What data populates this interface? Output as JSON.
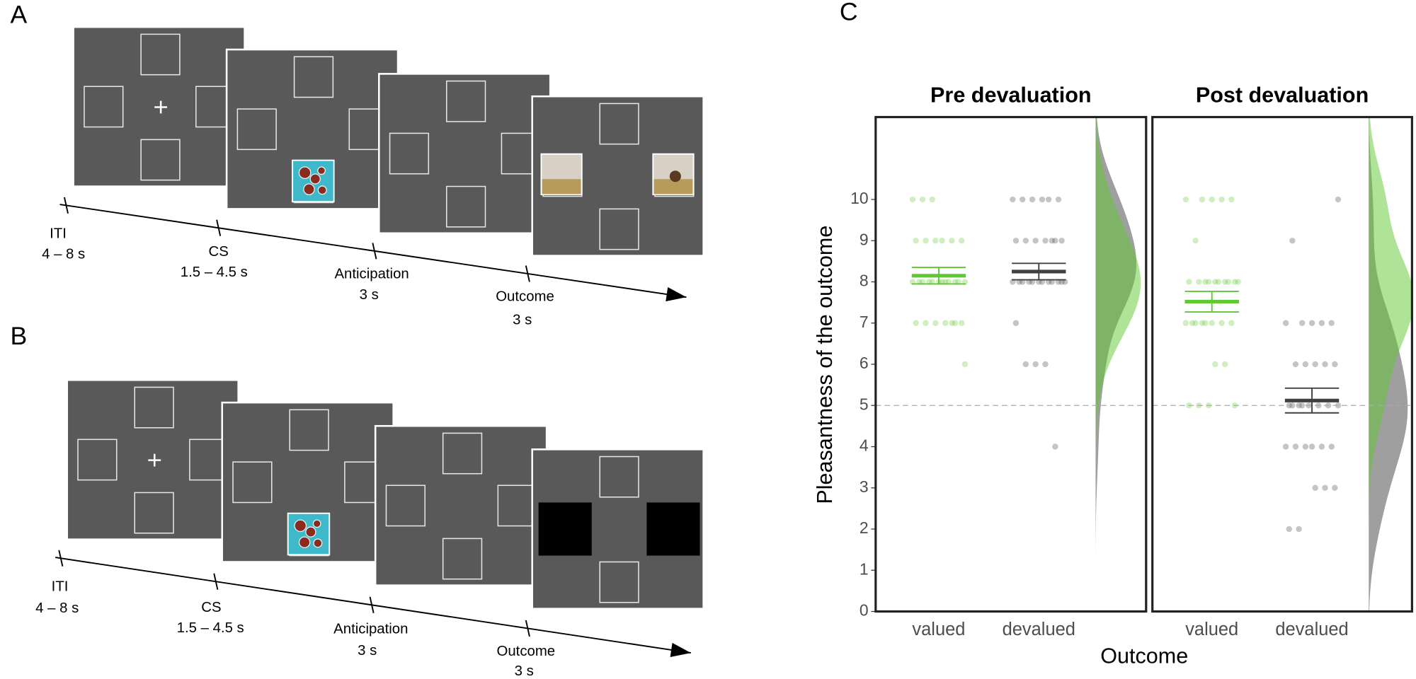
{
  "panels": {
    "A": {
      "label": "A",
      "timeline": [
        {
          "event": "ITI",
          "duration": "4 – 8 s"
        },
        {
          "event": "CS",
          "duration": "1.5 – 4.5 s"
        },
        {
          "event": "Anticipation",
          "duration": "3 s"
        },
        {
          "event": "Outcome",
          "duration": "3 s"
        }
      ]
    },
    "B": {
      "label": "B",
      "timeline": [
        {
          "event": "ITI",
          "duration": "4 – 8 s"
        },
        {
          "event": "CS",
          "duration": "1.5 – 4.5 s"
        },
        {
          "event": "Anticipation",
          "duration": "3 s"
        },
        {
          "event": "Outcome",
          "duration": "3 s"
        }
      ]
    },
    "C": {
      "label": "C"
    }
  },
  "chart_data": {
    "type": "raincloud",
    "y_label": "Pleasantness of the outcome",
    "x_label": "Outcome",
    "ylim": [
      0,
      12
    ],
    "yticks": [
      0,
      1,
      2,
      3,
      4,
      5,
      6,
      7,
      8,
      9,
      10
    ],
    "reference_line": 5,
    "facets": [
      {
        "title": "Pre devaluation",
        "groups": [
          {
            "name": "valued",
            "color": "#5fc832",
            "mean": 8.15,
            "se": 0.2,
            "points": [
              10,
              10,
              10,
              9,
              9,
              9,
              9,
              9,
              9,
              8,
              8,
              8,
              8,
              8,
              8,
              8,
              8,
              8,
              8,
              8,
              8,
              7,
              7,
              7,
              7,
              7,
              7,
              7,
              6
            ]
          },
          {
            "name": "devalued",
            "color": "#404040",
            "mean": 8.25,
            "se": 0.2,
            "points": [
              10,
              10,
              10,
              10,
              10,
              10,
              9,
              9,
              9,
              9,
              9,
              9,
              9,
              8,
              8,
              8,
              8,
              8,
              8,
              8,
              8,
              8,
              8,
              8,
              8,
              7,
              6,
              6,
              6,
              4
            ]
          }
        ]
      },
      {
        "title": "Post devaluation",
        "groups": [
          {
            "name": "valued",
            "color": "#5fc832",
            "mean": 7.52,
            "se": 0.25,
            "points": [
              10,
              10,
              10,
              10,
              10,
              9,
              8,
              8,
              8,
              8,
              8,
              8,
              8,
              8,
              8,
              8,
              7,
              7,
              7,
              7,
              7,
              7,
              7,
              7,
              6,
              6,
              5,
              5,
              5,
              5
            ]
          },
          {
            "name": "devalued",
            "color": "#404040",
            "mean": 5.12,
            "se": 0.3,
            "points": [
              10,
              9,
              7,
              7,
              7,
              7,
              7,
              6,
              6,
              6,
              6,
              6,
              5,
              5,
              5,
              5,
              5,
              5,
              5,
              5,
              4,
              4,
              4,
              4,
              4,
              4,
              3,
              3,
              3,
              2,
              2
            ]
          }
        ]
      }
    ]
  }
}
